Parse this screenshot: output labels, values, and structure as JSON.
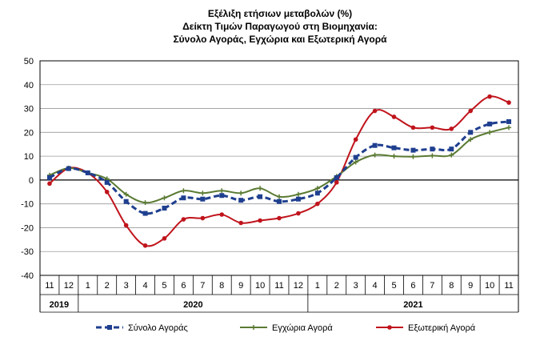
{
  "chart_data": {
    "type": "line",
    "title_lines": [
      "Εξέλιξη ετήσιων μεταβολών (%)",
      "Δείκτη Τιμών Παραγωγού στη Βιομηχανία:",
      "Σύνολο Αγοράς, Εγχώρια και Εξωτερική Αγορά"
    ],
    "x": [
      "11",
      "12",
      "1",
      "2",
      "3",
      "4",
      "5",
      "6",
      "7",
      "8",
      "9",
      "10",
      "11",
      "12",
      "1",
      "2",
      "3",
      "4",
      "5",
      "6",
      "7",
      "8",
      "9",
      "10",
      "11"
    ],
    "year_groups": [
      {
        "label": "2019",
        "start": 0,
        "end": 1
      },
      {
        "label": "2020",
        "start": 2,
        "end": 13
      },
      {
        "label": "2021",
        "start": 14,
        "end": 24
      }
    ],
    "ylim": [
      -40,
      50
    ],
    "yticks": [
      -40,
      -30,
      -20,
      -10,
      0,
      10,
      20,
      30,
      40,
      50
    ],
    "grid": true,
    "legend_position": "bottom",
    "series": [
      {
        "name": "Σύνολο Αγοράς",
        "color": "#1f3f8f",
        "style": "dashed-square",
        "values": [
          1.0,
          4.8,
          3.0,
          -1.0,
          -9.0,
          -14.0,
          -11.8,
          -7.5,
          -8.0,
          -6.5,
          -8.5,
          -7.0,
          -9.0,
          -8.0,
          -5.5,
          1.0,
          9.5,
          14.5,
          13.5,
          12.5,
          13.0,
          13.0,
          20.0,
          23.5,
          24.5
        ]
      },
      {
        "name": "Εγχώρια Αγορά",
        "color": "#5a7a32",
        "style": "solid-plus",
        "values": [
          2.0,
          5.0,
          3.0,
          0.5,
          -6.0,
          -9.5,
          -7.5,
          -4.5,
          -5.5,
          -4.5,
          -5.5,
          -3.5,
          -7.0,
          -6.0,
          -3.5,
          1.5,
          7.5,
          10.5,
          10.0,
          9.8,
          10.2,
          10.5,
          17.0,
          20.0,
          22.0
        ]
      },
      {
        "name": "Εξωτερική Αγορά",
        "color": "#c0141c",
        "style": "solid-dot",
        "values": [
          -1.5,
          5.0,
          3.0,
          -5.0,
          -19.0,
          -27.5,
          -24.5,
          -16.5,
          -16.0,
          -14.5,
          -18.0,
          -17.0,
          -16.0,
          -14.0,
          -10.0,
          -1.0,
          17.0,
          29.0,
          26.5,
          22.0,
          22.0,
          21.5,
          29.0,
          35.0,
          32.5
        ]
      }
    ]
  }
}
